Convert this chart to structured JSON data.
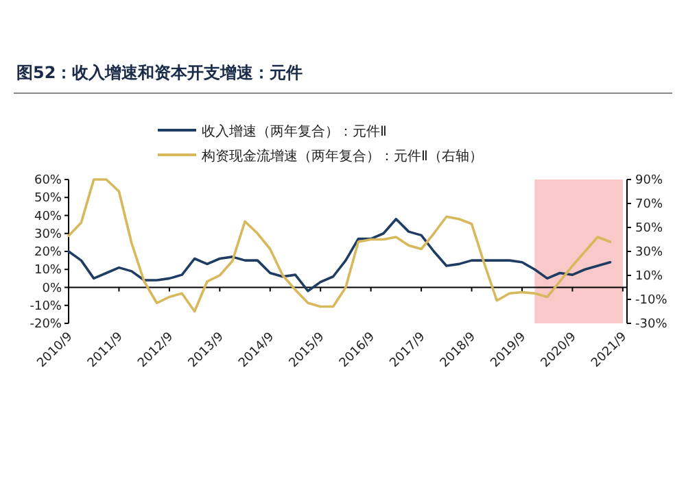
{
  "chart_data": {
    "type": "line",
    "title": "图52：收入增速和资本开支增速：元件",
    "x": [
      "2010-09",
      "2010-12",
      "2011-03",
      "2011-06",
      "2011-09",
      "2011-12",
      "2012-03",
      "2012-06",
      "2012-09",
      "2012-12",
      "2013-03",
      "2013-06",
      "2013-09",
      "2013-12",
      "2014-03",
      "2014-06",
      "2014-09",
      "2014-12",
      "2015-03",
      "2015-06",
      "2015-09",
      "2015-12",
      "2016-03",
      "2016-06",
      "2016-09",
      "2016-12",
      "2017-03",
      "2017-06",
      "2017-09",
      "2017-12",
      "2018-03",
      "2018-06",
      "2018-09",
      "2018-12",
      "2019-03",
      "2019-06",
      "2019-09",
      "2019-12",
      "2020-03",
      "2020-06",
      "2020-09",
      "2020-12",
      "2021-03",
      "2021-06"
    ],
    "series": [
      {
        "name": "收入增速（两年复合）：元件Ⅱ",
        "color": "#1f3d63",
        "values": [
          20,
          15,
          5,
          8,
          11,
          9,
          4,
          4,
          5,
          7,
          16,
          13,
          16,
          17,
          15,
          15,
          8,
          6,
          7,
          -2,
          3,
          6,
          15,
          27,
          27,
          30,
          38,
          31,
          29,
          20,
          12,
          13,
          15,
          15,
          15,
          15,
          14,
          10,
          5,
          8,
          7,
          10,
          12,
          14
        ]
      },
      {
        "name": "构资现金流增速（两年复合）：元件Ⅱ（右轴）",
        "color": "#d8b85c",
        "axis": "y2",
        "values": [
          43,
          54,
          90,
          90,
          80,
          37,
          5,
          -13,
          -8,
          -5,
          -20,
          5,
          10,
          22,
          55,
          45,
          32,
          10,
          -2,
          -13,
          -16,
          -16,
          0,
          38,
          40,
          40,
          42,
          35,
          32,
          45,
          59,
          57,
          53,
          20,
          -11,
          -5,
          -4,
          -5,
          -8,
          5,
          18,
          30,
          42,
          38
        ]
      }
    ],
    "xlim": [
      "2010-09",
      "2021-10"
    ],
    "xticks": [
      {
        "value": "2010-09",
        "label": "2010/9"
      },
      {
        "value": "2011-09",
        "label": "2011/9"
      },
      {
        "value": "2012-09",
        "label": "2012/9"
      },
      {
        "value": "2013-09",
        "label": "2013/9"
      },
      {
        "value": "2014-09",
        "label": "2014/9"
      },
      {
        "value": "2015-09",
        "label": "2015/9"
      },
      {
        "value": "2016-09",
        "label": "2016/9"
      },
      {
        "value": "2017-09",
        "label": "2017/9"
      },
      {
        "value": "2018-09",
        "label": "2018/9"
      },
      {
        "value": "2019-09",
        "label": "2019/9"
      },
      {
        "value": "2020-09",
        "label": "2020/9"
      },
      {
        "value": "2021-09",
        "label": "2021/9"
      }
    ],
    "ylim": [
      -20,
      60
    ],
    "yticks": [
      {
        "value": -20,
        "label": "-20%"
      },
      {
        "value": -10,
        "label": "-10%"
      },
      {
        "value": 0,
        "label": "0%"
      },
      {
        "value": 10,
        "label": "10%"
      },
      {
        "value": 20,
        "label": "20%"
      },
      {
        "value": 30,
        "label": "30%"
      },
      {
        "value": 40,
        "label": "40%"
      },
      {
        "value": 50,
        "label": "50%"
      },
      {
        "value": 60,
        "label": "60%"
      }
    ],
    "y2lim": [
      -30,
      90
    ],
    "y2ticks": [
      {
        "value": -30,
        "label": "-30%"
      },
      {
        "value": -10,
        "label": "-10%"
      },
      {
        "value": 10,
        "label": "10%"
      },
      {
        "value": 30,
        "label": "30%"
      },
      {
        "value": 50,
        "label": "50%"
      },
      {
        "value": 70,
        "label": "70%"
      },
      {
        "value": 90,
        "label": "90%"
      }
    ],
    "bands": [
      {
        "axis": "x",
        "from": "2019-12",
        "to": "2021-09",
        "color": "#f9c9ca"
      }
    ],
    "legend": "top",
    "line_style": "solid",
    "marker": "none"
  }
}
